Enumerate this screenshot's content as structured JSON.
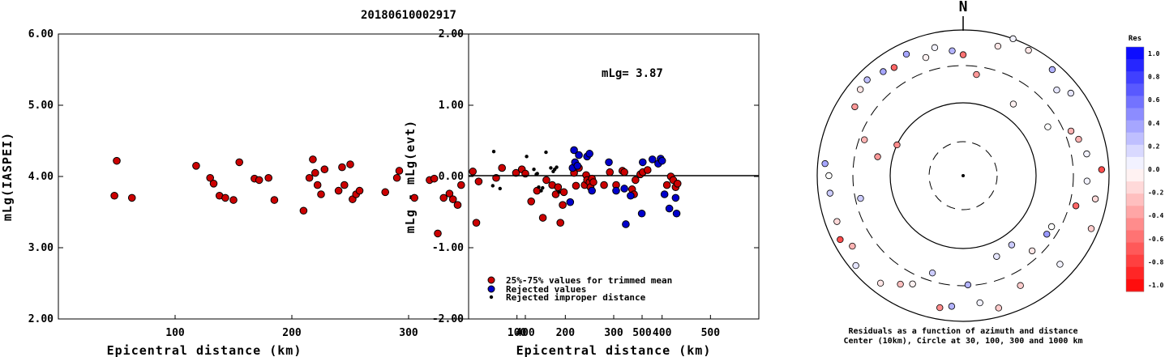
{
  "title": "20180610002917",
  "chart_data": [
    {
      "type": "scatter",
      "ylabel": "mLg(IASPEI)",
      "xlabel": "Epicentral distance (km)",
      "xlim": [
        0,
        600
      ],
      "ylim": [
        2.0,
        6.0
      ],
      "x_ticks": [
        "100",
        "200",
        "300",
        "400",
        "500"
      ],
      "y_ticks": [
        "2.00",
        "3.00",
        "4.00",
        "5.00",
        "6.00"
      ],
      "series": [
        {
          "color": "#cc0000",
          "points": [
            [
              50,
              4.22
            ],
            [
              48,
              3.73
            ],
            [
              63,
              3.7
            ],
            [
              118,
              4.15
            ],
            [
              130,
              3.98
            ],
            [
              133,
              3.9
            ],
            [
              138,
              3.73
            ],
            [
              143,
              3.7
            ],
            [
              150,
              3.67
            ],
            [
              155,
              4.2
            ],
            [
              168,
              3.97
            ],
            [
              172,
              3.95
            ],
            [
              180,
              3.98
            ],
            [
              185,
              3.67
            ],
            [
              210,
              3.52
            ],
            [
              215,
              3.98
            ],
            [
              218,
              4.24
            ],
            [
              220,
              4.05
            ],
            [
              222,
              3.88
            ],
            [
              225,
              3.75
            ],
            [
              228,
              4.1
            ],
            [
              240,
              3.8
            ],
            [
              243,
              4.13
            ],
            [
              245,
              3.88
            ],
            [
              250,
              4.17
            ],
            [
              252,
              3.68
            ],
            [
              255,
              3.75
            ],
            [
              258,
              3.8
            ],
            [
              280,
              3.78
            ],
            [
              290,
              3.98
            ],
            [
              292,
              4.08
            ],
            [
              305,
              3.7
            ],
            [
              318,
              3.95
            ],
            [
              322,
              3.97
            ],
            [
              325,
              3.2
            ],
            [
              330,
              3.7
            ],
            [
              335,
              3.76
            ],
            [
              338,
              3.68
            ],
            [
              342,
              3.6
            ],
            [
              345,
              3.88
            ],
            [
              355,
              4.07
            ],
            [
              358,
              3.35
            ],
            [
              360,
              3.93
            ],
            [
              375,
              3.98
            ],
            [
              380,
              4.12
            ],
            [
              392,
              4.05
            ],
            [
              397,
              4.1
            ],
            [
              400,
              4.04
            ],
            [
              405,
              3.65
            ],
            [
              410,
              3.8
            ],
            [
              415,
              3.42
            ],
            [
              418,
              3.95
            ],
            [
              423,
              3.88
            ],
            [
              426,
              3.75
            ],
            [
              428,
              3.85
            ],
            [
              430,
              3.35
            ],
            [
              432,
              3.6
            ],
            [
              433,
              3.78
            ]
          ]
        }
      ]
    },
    {
      "type": "scatter",
      "ylabel": "mLg - mLg(evt)",
      "xlabel": "Epicentral distance (km)",
      "annotation": "mLg= 3.87",
      "xlim": [
        0,
        600
      ],
      "ylim": [
        -2.0,
        2.0
      ],
      "hline": 0,
      "x_ticks": [
        "100",
        "200",
        "300",
        "400",
        "500"
      ],
      "y_ticks": [
        "-2.00",
        "-1.00",
        "0.00",
        "1.00",
        "2.00"
      ],
      "series": [
        {
          "name": "25%-75% values for trimmed mean",
          "color": "#cc0000",
          "points": [
            [
              218,
              0.05
            ],
            [
              222,
              -0.13
            ],
            [
              228,
              0.12
            ],
            [
              240,
              -0.12
            ],
            [
              243,
              0.02
            ],
            [
              245,
              -0.05
            ],
            [
              250,
              -0.08
            ],
            [
              252,
              -0.15
            ],
            [
              255,
              -0.03
            ],
            [
              258,
              -0.08
            ],
            [
              280,
              -0.12
            ],
            [
              292,
              0.06
            ],
            [
              305,
              -0.12
            ],
            [
              318,
              0.08
            ],
            [
              322,
              0.06
            ],
            [
              338,
              -0.18
            ],
            [
              342,
              -0.25
            ],
            [
              345,
              -0.05
            ],
            [
              355,
              0.03
            ],
            [
              360,
              0.06
            ],
            [
              370,
              0.09
            ],
            [
              410,
              -0.12
            ],
            [
              418,
              0.0
            ],
            [
              423,
              -0.05
            ],
            [
              428,
              -0.15
            ],
            [
              432,
              -0.1
            ]
          ]
        },
        {
          "name": "Rejected values",
          "color": "#0000cc",
          "points": [
            [
              210,
              -0.36
            ],
            [
              215,
              0.12
            ],
            [
              218,
              0.37
            ],
            [
              220,
              0.2
            ],
            [
              225,
              0.15
            ],
            [
              228,
              0.3
            ],
            [
              245,
              0.28
            ],
            [
              250,
              0.32
            ],
            [
              255,
              -0.2
            ],
            [
              290,
              0.2
            ],
            [
              305,
              -0.2
            ],
            [
              322,
              -0.17
            ],
            [
              325,
              -0.67
            ],
            [
              335,
              -0.27
            ],
            [
              358,
              -0.52
            ],
            [
              360,
              0.2
            ],
            [
              380,
              0.24
            ],
            [
              392,
              0.18
            ],
            [
              397,
              0.25
            ],
            [
              400,
              0.22
            ],
            [
              405,
              -0.25
            ],
            [
              415,
              -0.45
            ],
            [
              428,
              -0.3
            ],
            [
              430,
              -0.52
            ]
          ]
        },
        {
          "name": "Rejected improper distance",
          "color": "#000000",
          "points": [
            [
              52,
              0.35
            ],
            [
              50,
              -0.13
            ],
            [
              65,
              -0.17
            ],
            [
              120,
              0.28
            ],
            [
              135,
              0.1
            ],
            [
              140,
              0.03
            ],
            [
              142,
              0.04
            ],
            [
              145,
              -0.15
            ],
            [
              150,
              -0.2
            ],
            [
              153,
              -0.16
            ],
            [
              160,
              0.34
            ],
            [
              170,
              0.12
            ],
            [
              175,
              0.07
            ],
            [
              178,
              0.1
            ],
            [
              182,
              0.13
            ],
            [
              187,
              -0.22
            ]
          ]
        }
      ]
    },
    {
      "type": "scatter",
      "subtype": "polar",
      "north_label": "N",
      "caption_line1": "Residuals as a function of azimuth and distance",
      "caption_line2": "Center (10km), Circle at 30, 100, 300 and 1000 km",
      "colorbar_title": "Res",
      "colorbar_ticks": [
        "1.0",
        "0.8",
        "0.6",
        "0.4",
        "0.2",
        "0.0",
        "-0.2",
        "-0.4",
        "-0.6",
        "-0.8",
        "-1.0"
      ],
      "points": [
        [
          0.83,
          -0.55
        ],
        [
          0.7,
          -0.1
        ],
        [
          0.95,
          0.35
        ],
        [
          0.93,
          0.1
        ],
        [
          0.92,
          -0.45
        ],
        [
          0.88,
          -0.6
        ],
        [
          0.8,
          -0.6
        ],
        [
          0.95,
          -0.7
        ],
        [
          1.0,
          0.05
        ],
        [
          0.6,
          0.1
        ],
        [
          0.5,
          -0.45
        ],
        [
          0.83,
          -0.3
        ],
        [
          0.86,
          -0.25
        ],
        [
          0.9,
          0.05
        ],
        [
          0.7,
          0.4
        ],
        [
          0.92,
          0.2
        ],
        [
          0.95,
          0.3
        ],
        [
          0.75,
          0.3
        ],
        [
          0.93,
          0.25
        ],
        [
          0.85,
          0.05
        ],
        [
          0.96,
          0.1
        ],
        [
          0.7,
          -0.4
        ],
        [
          0.58,
          0.2
        ],
        [
          0.6,
          -0.4
        ],
        [
          0.67,
          0.0
        ],
        [
          0.7,
          0.2
        ],
        [
          0.92,
          0.35
        ],
        [
          0.95,
          -0.2
        ],
        [
          0.92,
          -0.15
        ],
        [
          0.97,
          -0.1
        ],
        [
          0.94,
          -0.2
        ],
        [
          0.88,
          -0.4
        ],
        [
          0.86,
          0.05
        ],
        [
          0.93,
          -0.1
        ],
        [
          0.86,
          0.3
        ],
        [
          0.9,
          0.05
        ],
        [
          0.92,
          0.0
        ],
        [
          0.87,
          0.1
        ],
        [
          0.9,
          0.3
        ],
        [
          0.9,
          0.35
        ],
        [
          0.92,
          -0.15
        ],
        [
          0.9,
          -0.3
        ],
        [
          0.92,
          -0.1
        ],
        [
          0.85,
          -0.2
        ],
        [
          0.72,
          -0.3
        ],
        [
          0.8,
          -0.3
        ],
        [
          0.82,
          -0.05
        ],
        [
          0.85,
          -0.05
        ],
        [
          0.7,
          0.0
        ],
        [
          0.72,
          0.2
        ],
        [
          0.6,
          -0.05
        ],
        [
          0.88,
          0.05
        ],
        [
          0.92,
          -0.1
        ],
        [
          0.95,
          -0.7
        ]
      ]
    }
  ]
}
